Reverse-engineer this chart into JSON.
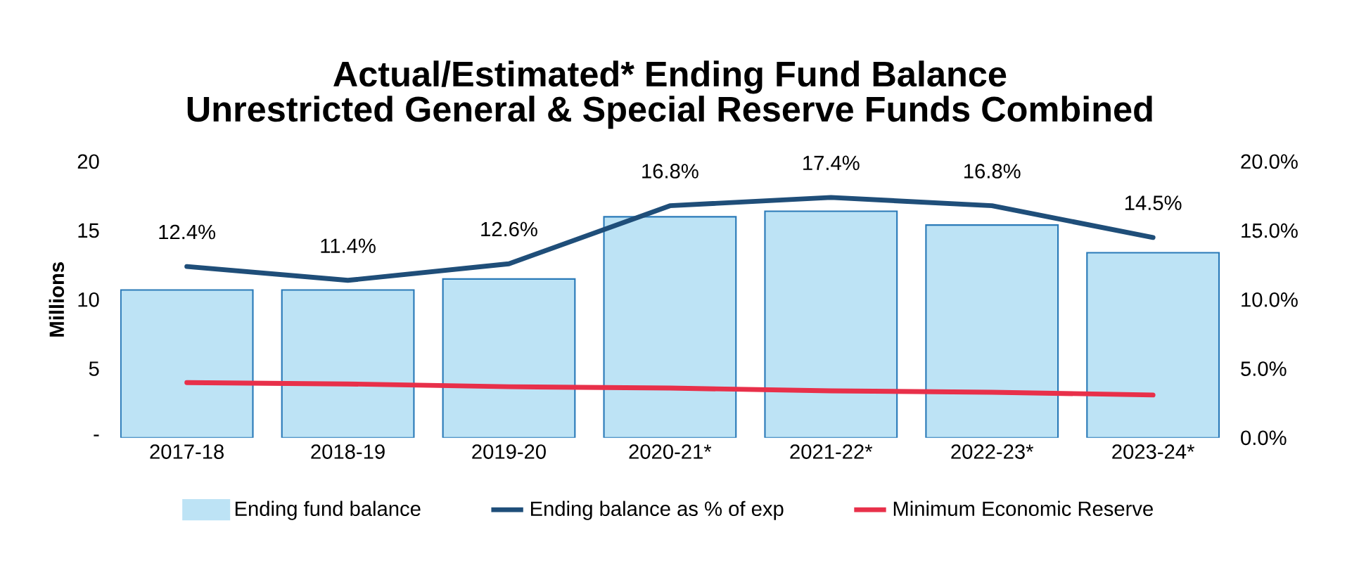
{
  "chart_data": {
    "type": "bar",
    "title": "Actual/Estimated* Ending Fund Balance",
    "subtitle": "Unrestricted General & Special Reserve Funds Combined",
    "ylabel": "Millions",
    "categories": [
      "2017-18",
      "2018-19",
      "2019-20",
      "2020-21*",
      "2021-22*",
      "2022-23*",
      "2023-24*"
    ],
    "series": [
      {
        "name": "Ending fund balance",
        "color": "#bde3f5",
        "values": [
          10.7,
          10.7,
          11.5,
          16.0,
          16.4,
          15.4,
          13.4
        ]
      },
      {
        "name": "Ending balance as % of exp",
        "type": "line",
        "axis": "y2",
        "color": "#1f4e79",
        "values": [
          12.4,
          11.4,
          12.6,
          16.8,
          17.4,
          16.8,
          14.5
        ],
        "value_labels": [
          "12.4%",
          "11.4%",
          "12.6%",
          "16.8%",
          "17.4%",
          "16.8%",
          "14.5%"
        ]
      },
      {
        "name": "Minimum Economic Reserve",
        "type": "line",
        "axis": "y2",
        "color": "#e8304a",
        "values": [
          4.0,
          3.9,
          3.7,
          3.6,
          3.4,
          3.3,
          3.1
        ]
      }
    ],
    "ylim": [
      0,
      20
    ],
    "yticks": [
      {
        "value": 0,
        "label": "-"
      },
      5,
      10,
      15,
      20
    ],
    "y2lim": [
      0,
      20
    ],
    "y2ticks": [
      {
        "value": 0,
        "label": "0.0%"
      },
      {
        "value": 5,
        "label": "5.0%"
      },
      {
        "value": 10,
        "label": "10.0%"
      },
      {
        "value": 15,
        "label": "15.0%"
      },
      {
        "value": 20,
        "label": "20.0%"
      }
    ],
    "legend": "bottom",
    "grid": false
  }
}
